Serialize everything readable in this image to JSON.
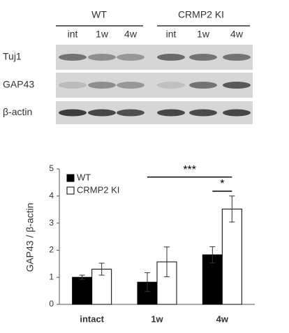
{
  "blot": {
    "groups": [
      "WT",
      "CRMP2 KI"
    ],
    "lanes": [
      "int",
      "1w",
      "4w",
      "int",
      "1w",
      "4w"
    ],
    "rows": [
      "Tuj1",
      "GAP43",
      "β-actin"
    ]
  },
  "chart_data": {
    "type": "bar",
    "ylabel": "GAP43 / β-actin",
    "categories": [
      "intact",
      "1w",
      "4w"
    ],
    "series": [
      {
        "name": "WT",
        "color": "#000000",
        "values": [
          1.0,
          0.82,
          1.83
        ],
        "errors": [
          0.08,
          0.35,
          0.3
        ]
      },
      {
        "name": "CRMP2 KI",
        "color": "#ffffff",
        "values": [
          1.3,
          1.57,
          3.52
        ],
        "errors": [
          0.22,
          0.55,
          0.48
        ]
      }
    ],
    "annotations": [
      {
        "label": "***",
        "y": 4.7
      },
      {
        "label": "*",
        "y": 4.18
      }
    ],
    "ylim": [
      0,
      5
    ],
    "yticks": [
      0,
      1,
      2,
      3,
      4,
      5
    ],
    "legend": "upper left"
  }
}
